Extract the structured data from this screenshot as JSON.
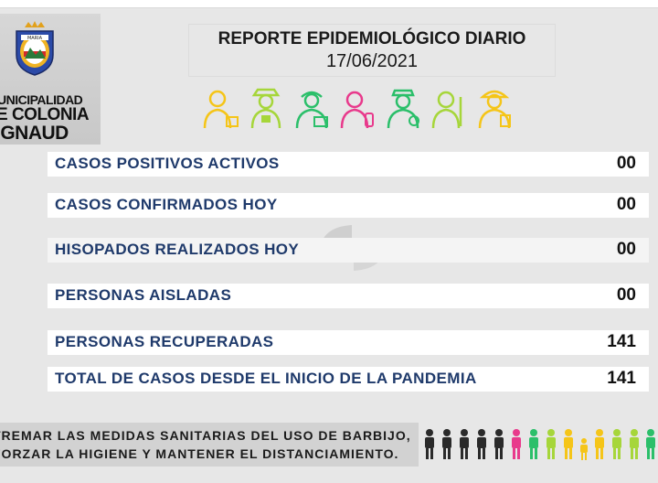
{
  "header": {
    "logo": {
      "crest_text": "MARIA",
      "line1": "UNICIPALIDAD",
      "line2": "E COLONIA",
      "line3": "IGNAUD"
    },
    "title": "REPORTE EPIDEMIOLÓGICO DIARIO",
    "date": "17/06/2021"
  },
  "professionals_icons": [
    "doctor-icon",
    "police-icon",
    "paramedic-icon",
    "pharmacist-icon",
    "nurse-icon",
    "cleaner-icon",
    "firefighter-icon"
  ],
  "stats": [
    {
      "label": "CASOS POSITIVOS ACTIVOS",
      "value": "00"
    },
    {
      "label": "CASOS CONFIRMADOS HOY",
      "value": "00"
    },
    {
      "label": "HISOPADOS REALIZADOS HOY",
      "value": "00"
    },
    {
      "label": "PERSONAS AISLADAS",
      "value": "00"
    },
    {
      "label": "PERSONAS RECUPERADAS",
      "value": "141"
    },
    {
      "label": "TOTAL DE CASOS DESDE EL INICIO DE LA PANDEMIA",
      "value": "141"
    }
  ],
  "banner": {
    "line1": "TREMAR LAS MEDIDAS SANITARIAS DEL USO DE BARBIJO,",
    "line2": "FORZAR LA HIGIENE Y MANTENER EL DISTANCIAMIENTO."
  },
  "colors": {
    "stat_label": "#1f3a6b",
    "icon_yellow": "#f5c518",
    "icon_green": "#2bbf6a",
    "icon_pink": "#e83a8c",
    "icon_lime": "#a6d63a"
  }
}
